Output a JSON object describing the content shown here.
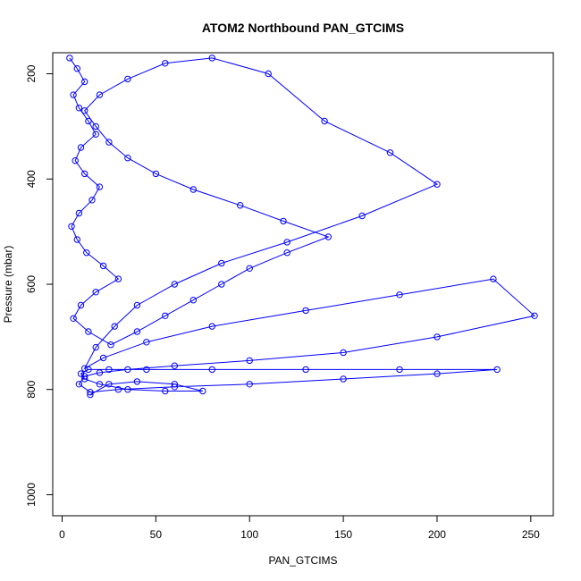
{
  "chart_data": {
    "type": "line",
    "title": "ATOM2 Northbound PAN_GTCIMS",
    "xlabel": "PAN_GTCIMS",
    "ylabel": "Pressure (mbar)",
    "xlim": [
      -5,
      262
    ],
    "ylim": [
      1040,
      160
    ],
    "y_reversed": true,
    "x_ticks": [
      0,
      50,
      100,
      150,
      200,
      250
    ],
    "y_ticks": [
      200,
      400,
      600,
      800,
      1000
    ],
    "grid": false,
    "marker": "open-circle",
    "series": [
      {
        "color": "#0000ff",
        "x": [
          4,
          8,
          12,
          6,
          9,
          14,
          18,
          10,
          7,
          12,
          20,
          16,
          9,
          5,
          8,
          13,
          22,
          30,
          18,
          10,
          6,
          14,
          26,
          40,
          55,
          70,
          85,
          100,
          120,
          142,
          118,
          95,
          70,
          50,
          35,
          25,
          18,
          12,
          20,
          35,
          55,
          80,
          110,
          140,
          175,
          200,
          160,
          120,
          85,
          60,
          40,
          28,
          18,
          12,
          22,
          45,
          80,
          130,
          180,
          230,
          252,
          200,
          150,
          100,
          60,
          35,
          20,
          12,
          9,
          15,
          30,
          60,
          100,
          150,
          200,
          232,
          180,
          130,
          80,
          45,
          25,
          14,
          10,
          12,
          20,
          35,
          55,
          75,
          60,
          40,
          25,
          15
        ],
        "y": [
          170,
          190,
          215,
          240,
          265,
          290,
          315,
          340,
          365,
          390,
          415,
          440,
          465,
          490,
          515,
          540,
          565,
          590,
          615,
          640,
          665,
          690,
          715,
          690,
          660,
          630,
          600,
          570,
          540,
          510,
          480,
          450,
          420,
          390,
          360,
          330,
          300,
          270,
          240,
          210,
          180,
          170,
          200,
          290,
          350,
          410,
          470,
          520,
          560,
          600,
          640,
          680,
          720,
          760,
          740,
          710,
          680,
          650,
          620,
          590,
          660,
          700,
          730,
          745,
          755,
          762,
          768,
          775,
          790,
          805,
          800,
          795,
          790,
          780,
          770,
          762,
          762,
          762,
          762,
          762,
          762,
          762,
          770,
          780,
          790,
          800,
          803,
          803,
          790,
          785,
          790,
          810
        ]
      }
    ]
  }
}
